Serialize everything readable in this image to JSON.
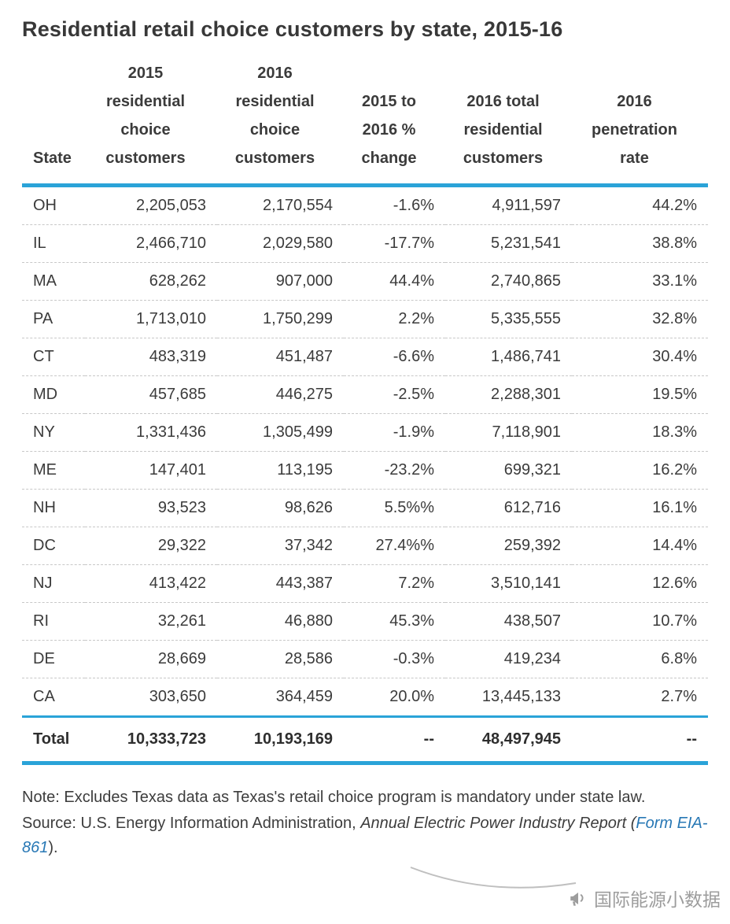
{
  "page_title": "Residential retail choice customers by state, 2015-16",
  "chart_data": {
    "type": "table",
    "title": "Residential retail choice customers by state, 2015-16",
    "columns": [
      "State",
      "2015\nresidential\nchoice\ncustomers",
      "2016\nresidential\nchoice\ncustomers",
      "2015 to\n2016 %\nchange",
      "2016 total\nresidential\ncustomers",
      "2016\npenetration\nrate"
    ],
    "rows": [
      [
        "OH",
        "2,205,053",
        "2,170,554",
        "-1.6%",
        "4,911,597",
        "44.2%"
      ],
      [
        "IL",
        "2,466,710",
        "2,029,580",
        "-17.7%",
        "5,231,541",
        "38.8%"
      ],
      [
        "MA",
        "628,262",
        "907,000",
        "44.4%",
        "2,740,865",
        "33.1%"
      ],
      [
        "PA",
        "1,713,010",
        "1,750,299",
        "2.2%",
        "5,335,555",
        "32.8%"
      ],
      [
        "CT",
        "483,319",
        "451,487",
        "-6.6%",
        "1,486,741",
        "30.4%"
      ],
      [
        "MD",
        "457,685",
        "446,275",
        "-2.5%",
        "2,288,301",
        "19.5%"
      ],
      [
        "NY",
        "1,331,436",
        "1,305,499",
        "-1.9%",
        "7,118,901",
        "18.3%"
      ],
      [
        "ME",
        "147,401",
        "113,195",
        "-23.2%",
        "699,321",
        "16.2%"
      ],
      [
        "NH",
        "93,523",
        "98,626",
        "5.5%%",
        "612,716",
        "16.1%"
      ],
      [
        "DC",
        "29,322",
        "37,342",
        "27.4%%",
        "259,392",
        "14.4%"
      ],
      [
        "NJ",
        "413,422",
        "443,387",
        "7.2%",
        "3,510,141",
        "12.6%"
      ],
      [
        "RI",
        "32,261",
        "46,880",
        "45.3%",
        "438,507",
        "10.7%"
      ],
      [
        "DE",
        "28,669",
        "28,586",
        "-0.3%",
        "419,234",
        "6.8%"
      ],
      [
        "CA",
        "303,650",
        "364,459",
        "20.0%",
        "13,445,133",
        "2.7%"
      ]
    ],
    "total_row": [
      "Total",
      "10,333,723",
      "10,193,169",
      "--",
      "48,497,945",
      "--"
    ]
  },
  "notes": {
    "note": "Note: Excludes Texas data as Texas's retail choice program is mandatory under state law.",
    "source_prefix": "Source: U.S. Energy Information Administration, ",
    "source_publication": "Annual Electric Power Industry Report",
    "source_open": " (",
    "source_link": "Form EIA-861",
    "source_close": ")."
  },
  "watermark": {
    "text": "国际能源小数据"
  },
  "colors": {
    "accent_blue": "#2AA3D8",
    "link_blue": "#2878B5",
    "text_dark": "#3B3B3B",
    "dashed_gray": "#C8C8C8",
    "watermark_gray": "#9D9D9D"
  }
}
